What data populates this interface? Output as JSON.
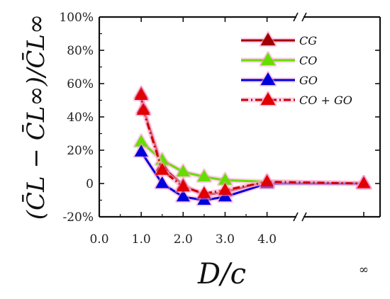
{
  "chart_data": {
    "type": "line",
    "title": "",
    "xlabel": "D/c",
    "ylabel": "(C̄L − C̄L∞)/C̄L∞",
    "x_ticks": [
      "0.0",
      "1.0",
      "2.0",
      "3.0",
      "4.0"
    ],
    "x_infinity_label": "∞",
    "y_ticks": [
      "-20%",
      "0",
      "20%",
      "40%",
      "60%",
      "80%",
      "100%"
    ],
    "xlim": [
      0,
      4.7
    ],
    "ylim": [
      -20,
      100
    ],
    "y_unit": "%",
    "x_axis_break": true,
    "legend_position": "top-right",
    "grid": false,
    "series": [
      {
        "name": "CG",
        "color": "#a00000",
        "line_style": "solid",
        "x": [
          1.0,
          1.05,
          1.5,
          2.0,
          2.5,
          3.0,
          4.0,
          "inf"
        ],
        "y": [
          54,
          45,
          10,
          -1,
          -7,
          -5,
          1,
          0
        ]
      },
      {
        "name": "CO",
        "color": "#66dd00",
        "line_style": "solid",
        "x": [
          1.0,
          1.5,
          2.0,
          2.5,
          3.0,
          4.0,
          "inf"
        ],
        "y": [
          25,
          14,
          7,
          4,
          2,
          1,
          0
        ]
      },
      {
        "name": "GO",
        "color": "#0000dd",
        "line_style": "solid",
        "x": [
          1.0,
          1.5,
          2.0,
          2.5,
          3.0,
          4.0,
          "inf"
        ],
        "y": [
          19,
          0,
          -8,
          -10,
          -8,
          0,
          0
        ]
      },
      {
        "name": "CO + GO",
        "color": "#cc0000",
        "line_style": "dash-dot",
        "x": [
          1.0,
          1.05,
          1.5,
          2.0,
          2.5,
          3.0,
          4.0,
          "inf"
        ],
        "y": [
          53,
          44,
          8,
          -2,
          -6,
          -4,
          1,
          0
        ]
      }
    ]
  }
}
